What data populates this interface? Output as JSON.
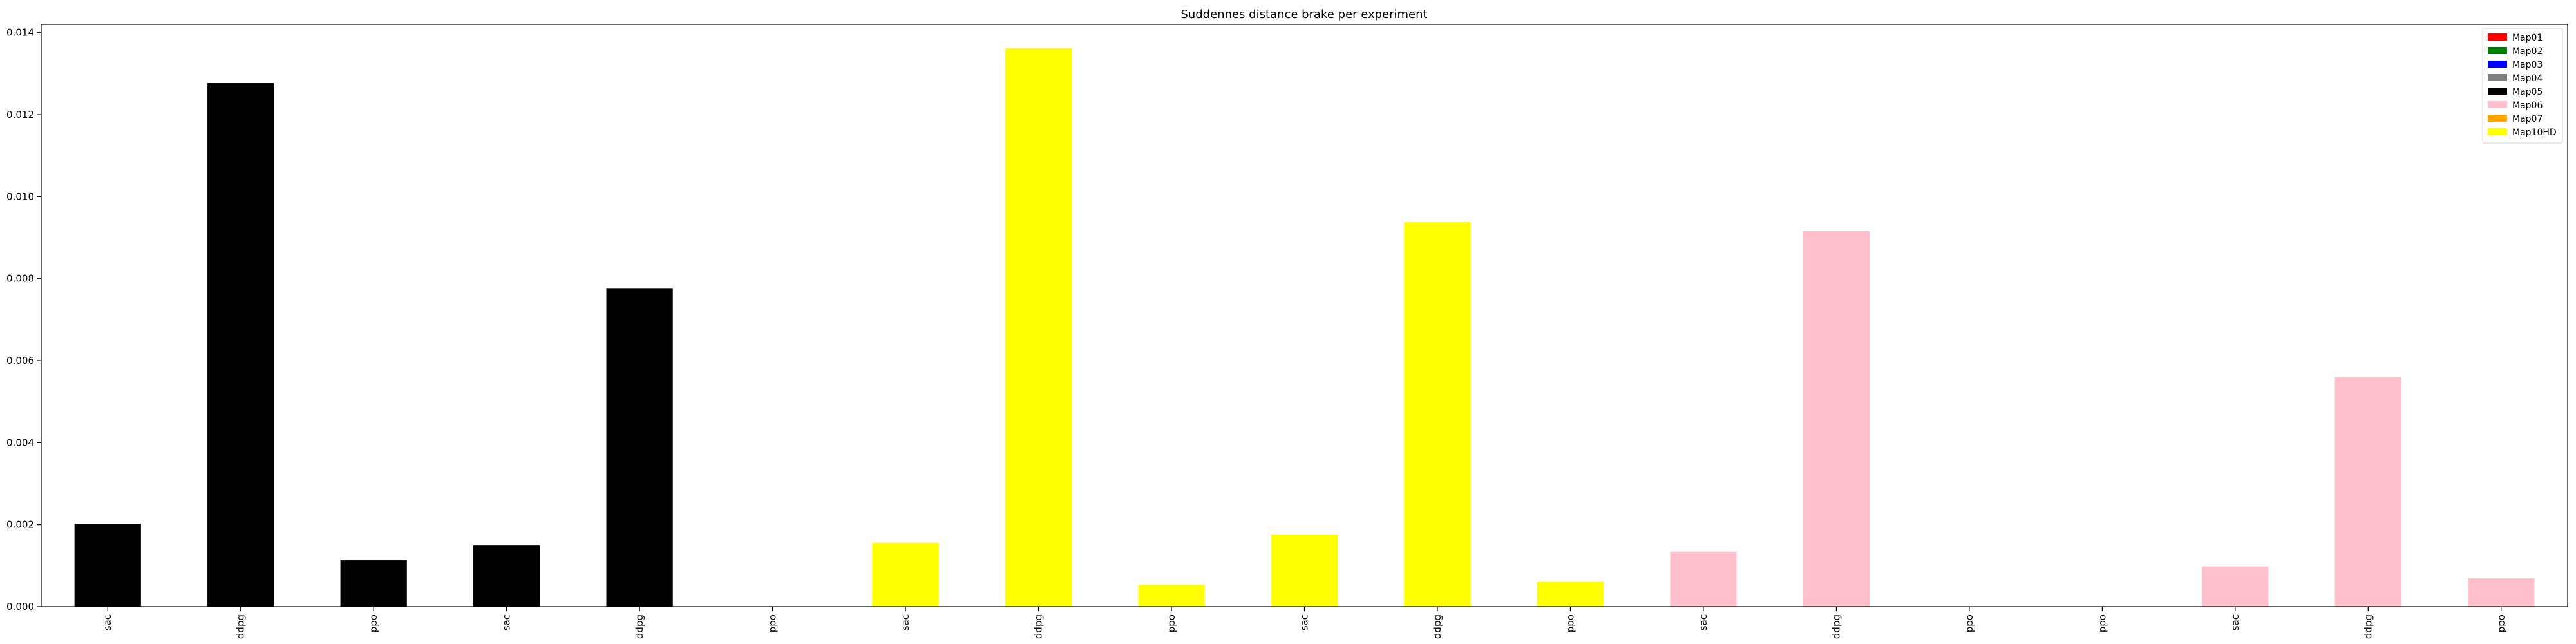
{
  "chart_data": {
    "type": "bar",
    "title": "Suddennes distance brake per experiment",
    "xlabel": "",
    "ylabel": "",
    "ylim": [
      0,
      0.0142
    ],
    "yticks": [
      "0.000",
      "0.002",
      "0.004",
      "0.006",
      "0.008",
      "0.010",
      "0.012",
      "0.014"
    ],
    "categories": [
      "sac",
      "ddpg",
      "ppo",
      "sac",
      "ddpg",
      "ppo",
      "sac",
      "ddpg",
      "ppo",
      "sac",
      "ddpg",
      "ppo",
      "sac",
      "ddpg",
      "ppo",
      "ppo",
      "sac",
      "ddpg",
      "ppo"
    ],
    "values": [
      0.00202,
      0.01277,
      0.00113,
      0.00149,
      0.00777,
      0.0,
      0.00156,
      0.01362,
      0.00053,
      0.00176,
      0.00938,
      0.00061,
      0.00134,
      0.00916,
      0.0,
      0.0,
      0.00098,
      0.0056,
      0.00069
    ],
    "bar_colors": [
      "#000000",
      "#000000",
      "#000000",
      "#000000",
      "#000000",
      "#000000",
      "#ffff00",
      "#ffff00",
      "#ffff00",
      "#ffff00",
      "#ffff00",
      "#ffff00",
      "#ffc0cb",
      "#ffc0cb",
      "#ffc0cb",
      "#ffc0cb",
      "#ffc0cb",
      "#ffc0cb",
      "#ffc0cb"
    ],
    "legend": {
      "placement": "top-right",
      "entries": [
        {
          "label": "Map01",
          "color": "#ff0000"
        },
        {
          "label": "Map02",
          "color": "#008000"
        },
        {
          "label": "Map03",
          "color": "#0000ff"
        },
        {
          "label": "Map04",
          "color": "#808080"
        },
        {
          "label": "Map05",
          "color": "#000000"
        },
        {
          "label": "Map06",
          "color": "#ffc0cb"
        },
        {
          "label": "Map07",
          "color": "#ffa500"
        },
        {
          "label": "Map10HD",
          "color": "#ffff00"
        }
      ]
    },
    "grid": false
  }
}
